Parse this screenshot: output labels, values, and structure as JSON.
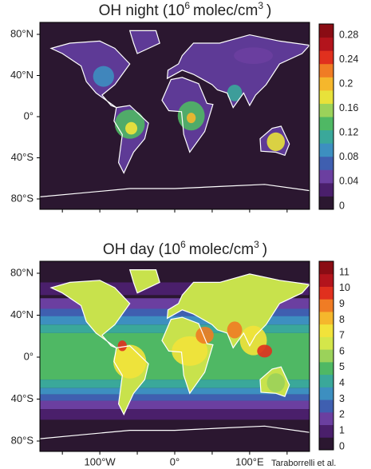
{
  "panels": [
    {
      "title": {
        "text": "OH night (10",
        "sup1": "6",
        "mid": "molec/cm",
        "sup2": "3",
        "end": ")"
      },
      "y_labels": [
        "80°N",
        "40°N",
        "0°",
        "40°S",
        "80°S"
      ],
      "colorbar_labels": [
        "0.28",
        "0.24",
        "0.2",
        "0.16",
        "0.12",
        "0.08",
        "0.04",
        "0"
      ]
    },
    {
      "title": {
        "text": "OH day (10",
        "sup1": "6",
        "mid": "molec/cm",
        "sup2": "3",
        "end": ")"
      },
      "y_labels": [
        "80°N",
        "40°N",
        "0°",
        "40°S",
        "80°S"
      ],
      "x_labels": [
        "100°W",
        "0°",
        "100°E"
      ],
      "colorbar_labels": [
        "11",
        "10",
        "9",
        "8",
        "7",
        "6",
        "5",
        "4",
        "3",
        "2",
        "1",
        "0"
      ]
    }
  ],
  "credit": "Taraborrelli et al."
}
